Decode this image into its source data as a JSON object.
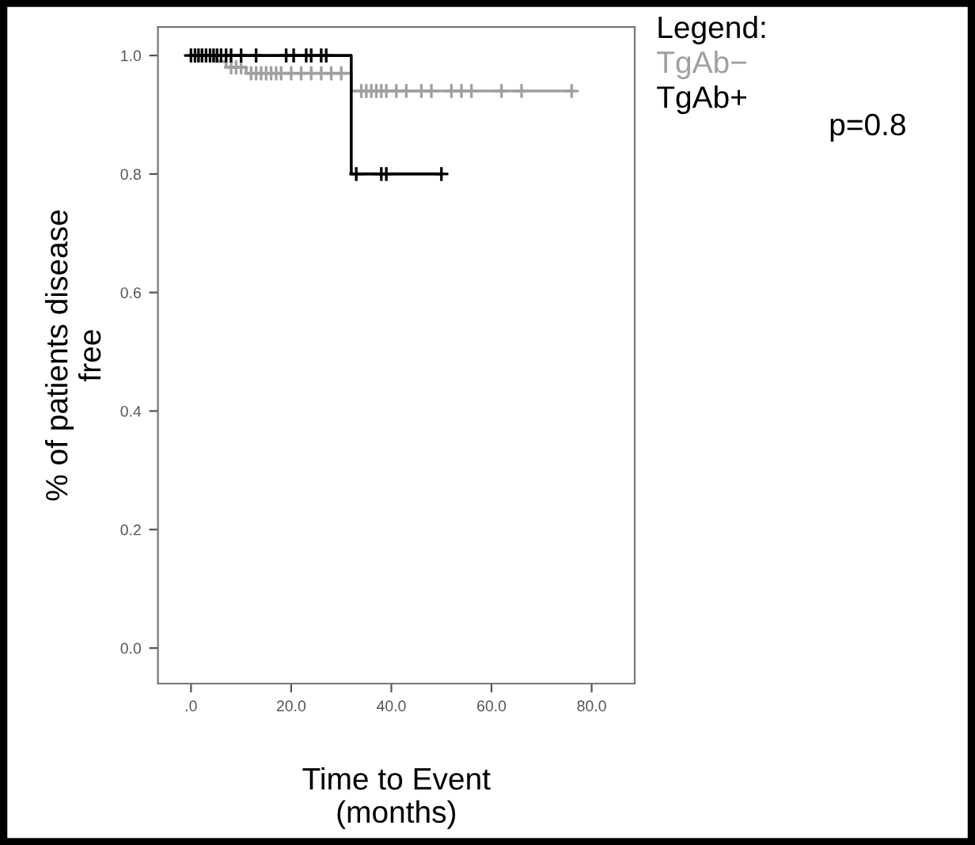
{
  "chart_data": {
    "type": "step",
    "xlabel": "Time to Event\n(months)",
    "ylabel": "% of patients disease\nfree",
    "legend_title": "Legend:",
    "legend": "right",
    "xlim": [
      -6.6,
      88.6
    ],
    "ylim": [
      -0.06,
      1.048
    ],
    "xticks": [
      {
        "value": 0,
        "label": ".0"
      },
      {
        "value": 20,
        "label": "20.0"
      },
      {
        "value": 40,
        "label": "40.0"
      },
      {
        "value": 60,
        "label": "60.0"
      },
      {
        "value": 80,
        "label": "80.0"
      }
    ],
    "yticks": [
      {
        "value": 0,
        "label": "0.0"
      },
      {
        "value": 0.2,
        "label": "0.2"
      },
      {
        "value": 0.4,
        "label": "0.4"
      },
      {
        "value": 0.6,
        "label": "0.6"
      },
      {
        "value": 0.8,
        "label": "0.8"
      },
      {
        "value": 1,
        "label": "1.0"
      }
    ],
    "grid": false,
    "series": [
      {
        "name": "TgAb−",
        "color": "#a0a0a0",
        "marker": "none",
        "x": [
          0,
          5,
          7,
          11,
          32,
          76
        ],
        "values": [
          1.0,
          0.99,
          0.98,
          0.97,
          0.94,
          0.94
        ]
      },
      {
        "name": "TgAb+",
        "color": "#000000",
        "marker": "none",
        "x": [
          0,
          32,
          50
        ],
        "values": [
          1.0,
          0.8,
          0.8
        ]
      },
      {
        "type": "scatter",
        "color": "#a0a0a0",
        "marker": "cross",
        "x": [
          8,
          9,
          10,
          12,
          13,
          14,
          15,
          16,
          17,
          18,
          20,
          22,
          24,
          26,
          28,
          30,
          34,
          35,
          36,
          37,
          38,
          39,
          41,
          43,
          46,
          48,
          52,
          54,
          56,
          62,
          66,
          76
        ],
        "values": [
          0.98,
          0.98,
          0.98,
          0.97,
          0.97,
          0.97,
          0.97,
          0.97,
          0.97,
          0.97,
          0.97,
          0.97,
          0.97,
          0.97,
          0.97,
          0.97,
          0.94,
          0.94,
          0.94,
          0.94,
          0.94,
          0.94,
          0.94,
          0.94,
          0.94,
          0.94,
          0.94,
          0.94,
          0.94,
          0.94,
          0.94,
          0.94
        ]
      },
      {
        "type": "scatter",
        "color": "#000000",
        "marker": "cross",
        "x": [
          0,
          0.8,
          1.5,
          2.2,
          3,
          3.8,
          4.5,
          5.2,
          6,
          7,
          8,
          10,
          13,
          19,
          20.5,
          23,
          24,
          26,
          27,
          33,
          38,
          39,
          50
        ],
        "values": [
          1.0,
          1.0,
          1.0,
          1.0,
          1.0,
          1.0,
          1.0,
          1.0,
          1.0,
          1.0,
          1.0,
          1.0,
          1.0,
          1.0,
          1.0,
          1.0,
          1.0,
          1.0,
          1.0,
          0.8,
          0.8,
          0.8,
          0.8
        ]
      }
    ],
    "annotations": [
      "p=0.8"
    ]
  }
}
